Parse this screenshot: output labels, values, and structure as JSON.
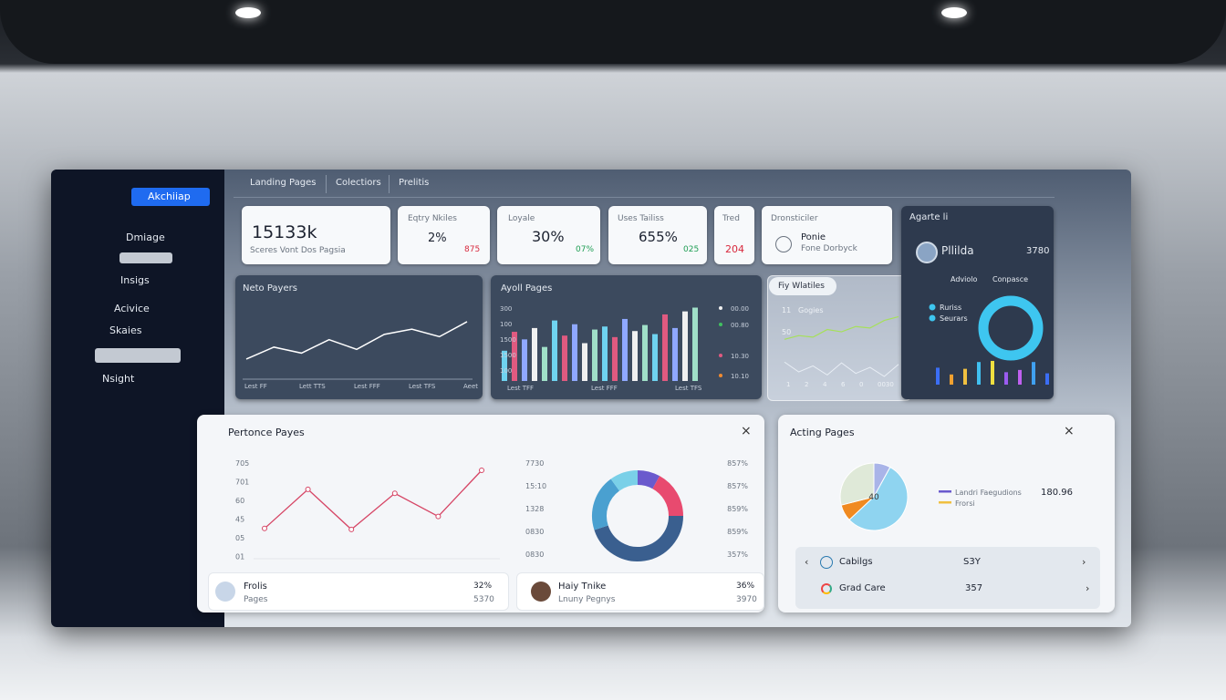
{
  "sidebar": {
    "brand": "Akchiiap",
    "nav": [
      "Dmiage",
      "Insigs",
      "Acivice",
      "Skaies",
      "Nsight"
    ]
  },
  "tabs": [
    "Landing Pages",
    "Colectiors",
    "Prelitis"
  ],
  "stats": [
    {
      "value": "15133k",
      "label": "Sceres Vont Dos Pagsia"
    },
    {
      "title": "Eqtry Nkiles",
      "value": "2%",
      "change": "875"
    },
    {
      "title": "Loyale",
      "value": "30%",
      "change": "07%"
    },
    {
      "title": "Uses Tailiss",
      "value": "655%",
      "change": "025"
    },
    {
      "title": "Tred",
      "change": "204"
    },
    {
      "title": "Dronsticiler",
      "value": "Ponie",
      "label": "Fone Dorbyck"
    }
  ],
  "net_pages": {
    "title": "Neto Payers",
    "x_labels": [
      "Lest FF",
      "Lett TTS",
      "Lest FFF",
      "Lest TFS",
      "Aeet"
    ],
    "values": [
      22,
      38,
      30,
      48,
      35,
      55,
      62,
      52,
      72
    ],
    "ylim": [
      0,
      100
    ],
    "color": "#ffffff"
  },
  "avg_pages": {
    "title": "Ayoll Pages",
    "y_labels": [
      "300",
      "100",
      "1500",
      "1500",
      "100"
    ],
    "right_labels": [
      "00.00",
      "00.80",
      "10.30",
      "10.10"
    ],
    "x_labels": [
      "Lest TFF",
      "Lest FFF",
      "Lest TFS"
    ],
    "bars": [
      40,
      65,
      55,
      70,
      45,
      80,
      60,
      75,
      50,
      68,
      72,
      58,
      82,
      66,
      74,
      62,
      88,
      70,
      92,
      97
    ],
    "ylim": [
      0,
      100
    ]
  },
  "fly": {
    "title": "Fiy Wlatiles",
    "legend": "Gogies",
    "y_labels": [
      "11",
      "50"
    ],
    "x_labels": [
      "1",
      "2",
      "4",
      "6",
      "0",
      "0030"
    ],
    "series": [
      {
        "color": "#a6e05a",
        "values": [
          55,
          60,
          58,
          68,
          65,
          72,
          70,
          80,
          85
        ]
      },
      {
        "color": "#e8eef5",
        "values": [
          25,
          12,
          20,
          8,
          24,
          10,
          18,
          6,
          22
        ]
      }
    ],
    "ylim": [
      0,
      100
    ]
  },
  "agent": {
    "title": "Agarte li",
    "name": "Pllilda",
    "value": "3780",
    "meta": [
      "Adviolo",
      "Conpasce"
    ],
    "legend": [
      "Ruriss",
      "Seurars"
    ],
    "bars": [
      {
        "color": "#3b6ef5",
        "value": 30
      },
      {
        "color": "#f0a030",
        "value": 18
      },
      {
        "color": "#f0c040",
        "value": 28
      },
      {
        "color": "#40c0f0",
        "value": 40
      },
      {
        "color": "#f0e040",
        "value": 42
      },
      {
        "color": "#9b5cf0",
        "value": 22
      },
      {
        "color": "#c060f0",
        "value": 26
      },
      {
        "color": "#40a0f0",
        "value": 40
      },
      {
        "color": "#3b6ef5",
        "value": 20
      }
    ],
    "ylim": [
      0,
      100
    ]
  },
  "performance": {
    "title": "Pertonce Payes",
    "y_labels": [
      "705",
      "701",
      "60",
      "45",
      "05",
      "01"
    ],
    "values": [
      32,
      71,
      31,
      67,
      44,
      90
    ],
    "ylim": [
      0,
      100
    ],
    "color": "#d64565",
    "donut_left": [
      "7730",
      "15:10",
      "1328",
      "0830",
      "0830"
    ],
    "donut_right": [
      "857%",
      "857%",
      "859%",
      "859%",
      "357%"
    ],
    "donut": [
      {
        "color": "#6a5acd",
        "value": 8
      },
      {
        "color": "#e84a6f",
        "value": 17
      },
      {
        "color": "#3a5f8f",
        "value": 45
      },
      {
        "color": "#4aa0d0",
        "value": 20
      },
      {
        "color": "#7ad0e8",
        "value": 10
      }
    ],
    "rows": [
      {
        "name": "Frolis",
        "sub": "Pages",
        "pct": "32%",
        "num": "5370"
      },
      {
        "name": "Haiy Tnike",
        "sub": "Lnuny Pegnys",
        "pct": "36%",
        "num": "3970"
      }
    ]
  },
  "acting": {
    "title": "Acting Pages",
    "pie_label": "40",
    "pie": [
      {
        "color": "#a9b4e8",
        "value": 8
      },
      {
        "color": "#8fd4f0",
        "value": 55
      },
      {
        "color": "#f08a20",
        "value": 8
      },
      {
        "color": "#dfe9d8",
        "value": 29
      }
    ],
    "legend": [
      {
        "name": "Landri Faegudions",
        "color": "#6a5acd"
      },
      {
        "name": "Frorsi",
        "color": "#f0c040"
      }
    ],
    "legend_value": "180.96",
    "rows": [
      {
        "name": "Cabilgs",
        "value": "S3Y"
      },
      {
        "name": "Grad Care",
        "value": "357"
      }
    ]
  }
}
